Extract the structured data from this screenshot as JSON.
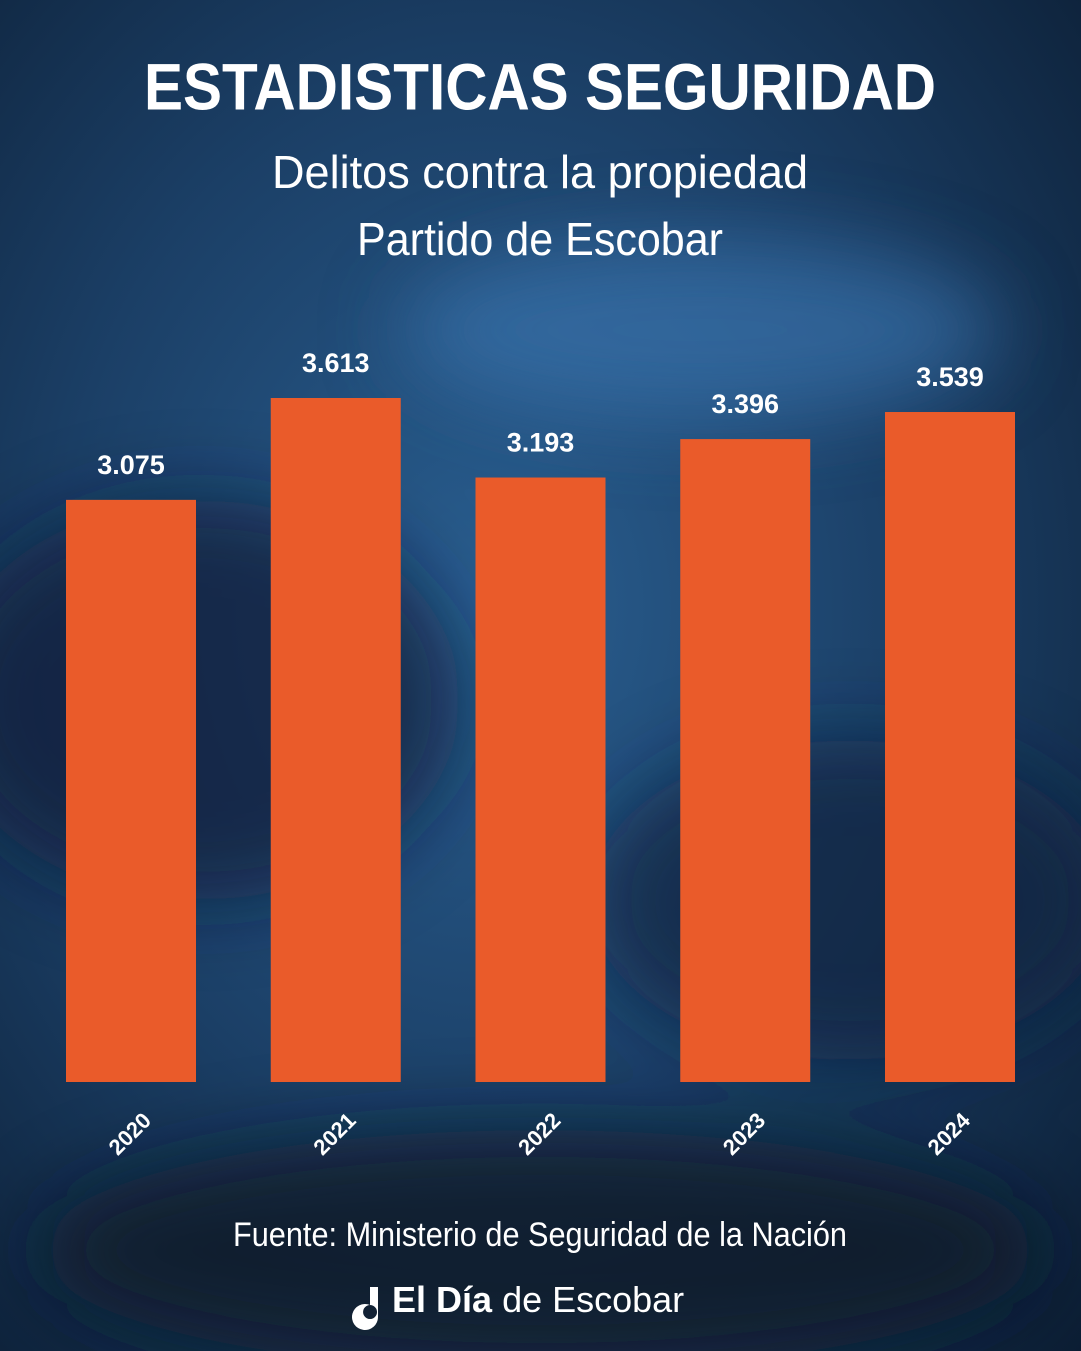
{
  "chart_data": {
    "type": "bar",
    "title": "ESTADISTICAS SEGURIDAD",
    "subtitle": [
      "Delitos contra la propiedad",
      "Partido de Escobar"
    ],
    "categories": [
      "2020",
      "2021",
      "2022",
      "2023",
      "2024"
    ],
    "values": [
      3075,
      3613,
      3193,
      3396,
      3539
    ],
    "value_labels": [
      "3.075",
      "3.613",
      "3.193",
      "3.396",
      "3.539"
    ],
    "color": "#ea5b2a",
    "source": "Fuente: Ministerio de Seguridad de la Nación",
    "brand": {
      "bold": "El Día",
      "regular": "de Escobar"
    }
  }
}
